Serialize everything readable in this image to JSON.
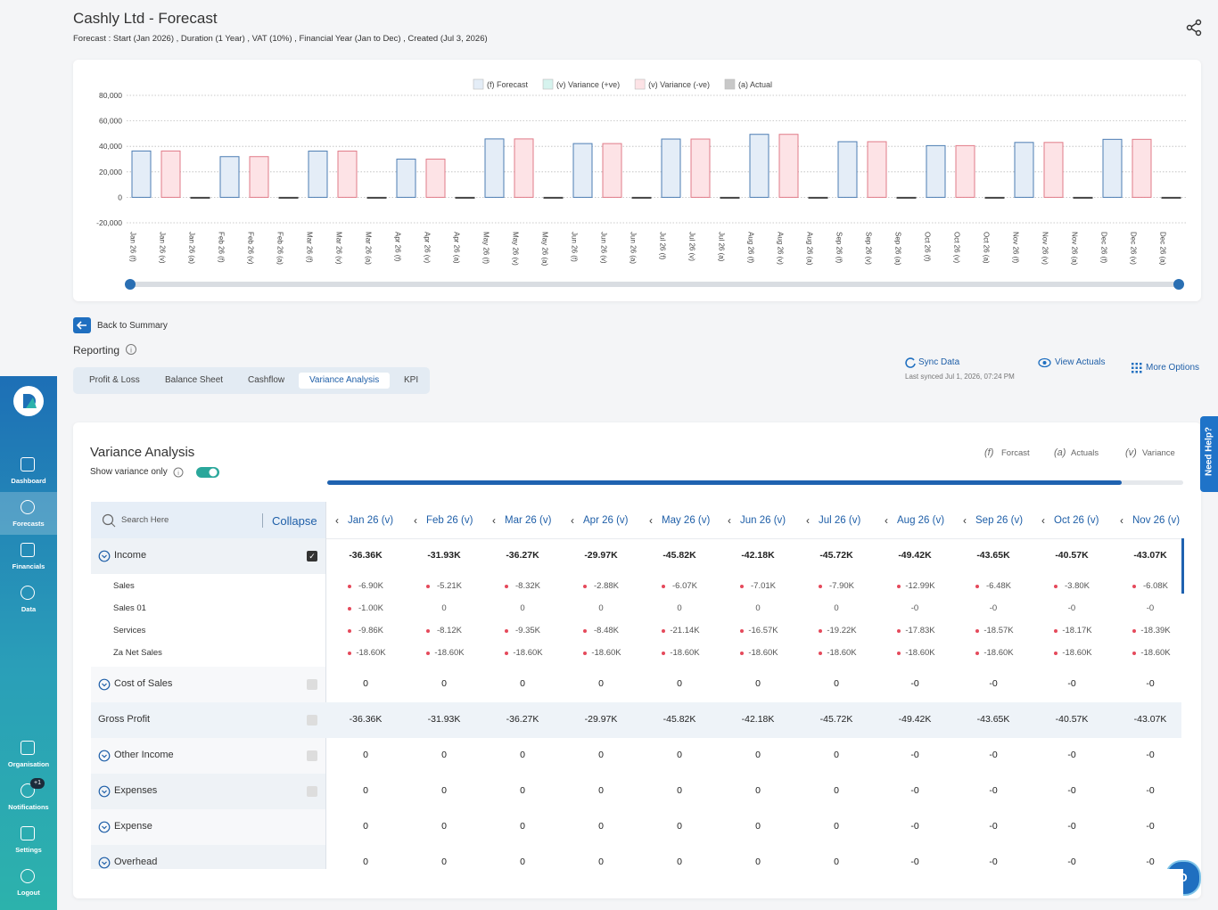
{
  "header": {
    "title": "Cashly Ltd - Forecast",
    "subtitle": "Forecast : Start (Jan 2026) ,  Duration (1 Year) ,  VAT (10%) , Financial Year (Jan to Dec) , Created (Jul 3, 2026)"
  },
  "chart_data": {
    "type": "bar",
    "categories": [
      "Jan 26 (f)",
      "Jan 26 (v)",
      "Jan 26 (a)",
      "Feb 26 (f)",
      "Feb 26 (v)",
      "Feb 26 (a)",
      "Mar 26 (f)",
      "Mar 26 (v)",
      "Mar 26 (a)",
      "Apr 26 (f)",
      "Apr 26 (v)",
      "Apr 26 (a)",
      "May 26 (f)",
      "May 26 (v)",
      "May 26 (a)",
      "Jun 26 (f)",
      "Jun 26 (v)",
      "Jun 26 (a)",
      "Jul 26 (f)",
      "Jul 26 (v)",
      "Jul 26 (a)",
      "Aug 26 (f)",
      "Aug 26 (v)",
      "Aug 26 (a)",
      "Sep 26 (f)",
      "Sep 26 (v)",
      "Sep 26 (a)",
      "Oct 26 (f)",
      "Oct 26 (v)",
      "Oct 26 (a)",
      "Nov 26 (f)",
      "Nov 26 (v)",
      "Nov 26 (a)",
      "Dec 26 (f)",
      "Dec 26 (v)",
      "Dec 26 (a)"
    ],
    "series": [
      {
        "name": "(f) Forecast",
        "color": "#e4edf7",
        "stroke": "#4d7db3",
        "values": [
          36360,
          null,
          null,
          31930,
          null,
          null,
          36270,
          null,
          null,
          29970,
          null,
          null,
          45820,
          null,
          null,
          42180,
          null,
          null,
          45720,
          null,
          null,
          49420,
          null,
          null,
          43650,
          null,
          null,
          40570,
          null,
          null,
          43070,
          null,
          null,
          45500,
          null,
          null
        ]
      },
      {
        "name": "(v) Variance (+ve)",
        "color": "#d6f3ee",
        "stroke": "#6cc9b8",
        "values": [
          null,
          null,
          null,
          null,
          null,
          null,
          null,
          null,
          null,
          null,
          null,
          null,
          null,
          null,
          null,
          null,
          null,
          null,
          null,
          null,
          null,
          null,
          null,
          null,
          null,
          null,
          null,
          null,
          null,
          null,
          null,
          null,
          null,
          null,
          null,
          null
        ]
      },
      {
        "name": "(v) Variance (-ve)",
        "color": "#fde3e6",
        "stroke": "#e07b88",
        "values": [
          null,
          36360,
          null,
          null,
          31930,
          null,
          null,
          36270,
          null,
          null,
          29970,
          null,
          null,
          45820,
          null,
          null,
          42180,
          null,
          null,
          45720,
          null,
          null,
          49420,
          null,
          null,
          43650,
          null,
          null,
          40570,
          null,
          null,
          43070,
          null,
          null,
          45500,
          null
        ]
      },
      {
        "name": "(a) Actual",
        "color": "#c8c8c8",
        "stroke": "#444",
        "values": [
          null,
          null,
          0,
          null,
          null,
          0,
          null,
          null,
          0,
          null,
          null,
          0,
          null,
          null,
          0,
          null,
          null,
          0,
          null,
          null,
          0,
          null,
          null,
          0,
          null,
          null,
          0,
          null,
          null,
          0,
          null,
          null,
          0,
          null,
          null,
          0
        ]
      }
    ],
    "ylim": [
      -20000,
      80000
    ],
    "yticks": [
      {
        "value": -20000,
        "label": "-20,000"
      },
      0,
      {
        "value": 20000,
        "label": "20,000"
      },
      {
        "value": 40000,
        "label": "40,000"
      },
      {
        "value": 60000,
        "label": "60,000"
      },
      {
        "value": 80000,
        "label": "80,000"
      }
    ],
    "grid": true,
    "legend": "top"
  },
  "sidebar": {
    "items": [
      "Dashboard",
      "Forecasts",
      "Financials",
      "Data",
      "Organisation",
      "Notifications",
      "Settings",
      "Logout"
    ],
    "active": 1,
    "badge": "+1"
  },
  "nav": {
    "back": "Back to Summary",
    "section": "Reporting",
    "tabs": [
      "Profit & Loss",
      "Balance Sheet",
      "Cashflow",
      "Variance Analysis",
      "KPI"
    ],
    "active_tab": 3
  },
  "actions": {
    "sync": "Sync Data",
    "last_synced": "Last synced Jul 1, 2026, 07:24 PM",
    "view_actuals": "View Actuals",
    "more_options": "More Options"
  },
  "panel": {
    "title": "Variance Analysis",
    "toggle_label": "Show variance only",
    "legend": [
      {
        "key": "(f)",
        "label": "Forcast"
      },
      {
        "key": "(a)",
        "label": "Actuals"
      },
      {
        "key": "(v)",
        "label": "Variance"
      }
    ],
    "search": "Search Here",
    "collapse": "Collapse",
    "columns": [
      "Jan 26 (v)",
      "Feb 26 (v)",
      "Mar 26 (v)",
      "Apr 26 (v)",
      "May 26 (v)",
      "Jun 26 (v)",
      "Jul 26 (v)",
      "Aug 26 (v)",
      "Sep 26 (v)",
      "Oct 26 (v)",
      "Nov 26 (v)"
    ],
    "rows": [
      {
        "label": "Income",
        "kind": "group",
        "checked": true,
        "values": [
          "-36.36K",
          "-31.93K",
          "-36.27K",
          "-29.97K",
          "-45.82K",
          "-42.18K",
          "-45.72K",
          "-49.42K",
          "-43.65K",
          "-40.57K",
          "-43.07K"
        ]
      },
      {
        "label": "Sales",
        "kind": "item",
        "values": [
          "-6.90K",
          "-5.21K",
          "-8.32K",
          "-2.88K",
          "-6.07K",
          "-7.01K",
          "-7.90K",
          "-12.99K",
          "-6.48K",
          "-3.80K",
          "-6.08K"
        ]
      },
      {
        "label": "Sales 01",
        "kind": "item",
        "values": [
          "-1.00K",
          "0",
          "0",
          "0",
          "0",
          "0",
          "0",
          "-0",
          "-0",
          "-0",
          "-0"
        ]
      },
      {
        "label": "Services",
        "kind": "item",
        "values": [
          "-9.86K",
          "-8.12K",
          "-9.35K",
          "-8.48K",
          "-21.14K",
          "-16.57K",
          "-19.22K",
          "-17.83K",
          "-18.57K",
          "-18.17K",
          "-18.39K"
        ]
      },
      {
        "label": "Za Net Sales",
        "kind": "item",
        "values": [
          "-18.60K",
          "-18.60K",
          "-18.60K",
          "-18.60K",
          "-18.60K",
          "-18.60K",
          "-18.60K",
          "-18.60K",
          "-18.60K",
          "-18.60K",
          "-18.60K"
        ]
      },
      {
        "label": "Cost of Sales",
        "kind": "group",
        "checked": false,
        "values": [
          "0",
          "0",
          "0",
          "0",
          "0",
          "0",
          "0",
          "-0",
          "-0",
          "-0",
          "-0"
        ]
      },
      {
        "label": "Gross Profit",
        "kind": "total",
        "checked": false,
        "values": [
          "-36.36K",
          "-31.93K",
          "-36.27K",
          "-29.97K",
          "-45.82K",
          "-42.18K",
          "-45.72K",
          "-49.42K",
          "-43.65K",
          "-40.57K",
          "-43.07K"
        ]
      },
      {
        "label": "Other Income",
        "kind": "group",
        "checked": false,
        "values": [
          "0",
          "0",
          "0",
          "0",
          "0",
          "0",
          "0",
          "-0",
          "-0",
          "-0",
          "-0"
        ]
      },
      {
        "label": "Expenses",
        "kind": "group",
        "checked": false,
        "values": [
          "0",
          "0",
          "0",
          "0",
          "0",
          "0",
          "0",
          "-0",
          "-0",
          "-0",
          "-0"
        ]
      },
      {
        "label": "Expense",
        "kind": "group",
        "values": [
          "0",
          "0",
          "0",
          "0",
          "0",
          "0",
          "0",
          "-0",
          "-0",
          "-0",
          "-0"
        ]
      },
      {
        "label": "Overhead",
        "kind": "group",
        "values": [
          "0",
          "0",
          "0",
          "0",
          "0",
          "0",
          "0",
          "-0",
          "-0",
          "-0",
          "-0"
        ]
      }
    ]
  },
  "help": "Need Help?",
  "avatar": "D"
}
